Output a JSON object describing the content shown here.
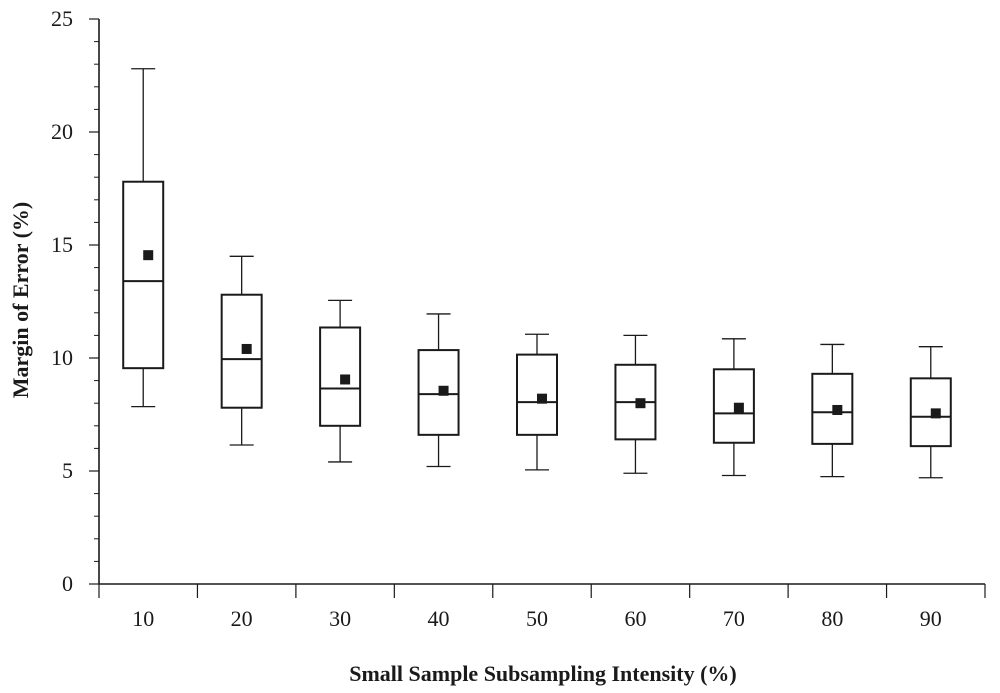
{
  "chart_data": {
    "type": "box",
    "title": "",
    "xlabel": "Small Sample Subsampling Intensity (%)",
    "ylabel": "Margin of Error (%)",
    "ylim": [
      0,
      25
    ],
    "y_ticks": [
      0,
      5,
      10,
      15,
      20,
      25
    ],
    "y_minor_step": 1,
    "categories": [
      "10",
      "20",
      "30",
      "40",
      "50",
      "60",
      "70",
      "80",
      "90"
    ],
    "boxes": [
      {
        "category": "10",
        "whisker_low": 7.85,
        "q1": 9.55,
        "median": 13.4,
        "q3": 17.8,
        "whisker_high": 22.8,
        "mean": 14.55
      },
      {
        "category": "20",
        "whisker_low": 6.15,
        "q1": 7.8,
        "median": 9.95,
        "q3": 12.8,
        "whisker_high": 14.5,
        "mean": 10.4
      },
      {
        "category": "30",
        "whisker_low": 5.4,
        "q1": 7.0,
        "median": 8.65,
        "q3": 11.35,
        "whisker_high": 12.55,
        "mean": 9.05
      },
      {
        "category": "40",
        "whisker_low": 5.2,
        "q1": 6.6,
        "median": 8.4,
        "q3": 10.35,
        "whisker_high": 11.95,
        "mean": 8.55
      },
      {
        "category": "50",
        "whisker_low": 5.05,
        "q1": 6.6,
        "median": 8.05,
        "q3": 10.15,
        "whisker_high": 11.05,
        "mean": 8.2
      },
      {
        "category": "60",
        "whisker_low": 4.9,
        "q1": 6.4,
        "median": 8.05,
        "q3": 9.7,
        "whisker_high": 11.0,
        "mean": 8.0
      },
      {
        "category": "70",
        "whisker_low": 4.8,
        "q1": 6.25,
        "median": 7.55,
        "q3": 9.5,
        "whisker_high": 10.85,
        "mean": 7.8
      },
      {
        "category": "80",
        "whisker_low": 4.75,
        "q1": 6.2,
        "median": 7.6,
        "q3": 9.3,
        "whisker_high": 10.6,
        "mean": 7.7
      },
      {
        "category": "90",
        "whisker_low": 4.7,
        "q1": 6.1,
        "median": 7.4,
        "q3": 9.1,
        "whisker_high": 10.5,
        "mean": 7.55
      }
    ]
  }
}
